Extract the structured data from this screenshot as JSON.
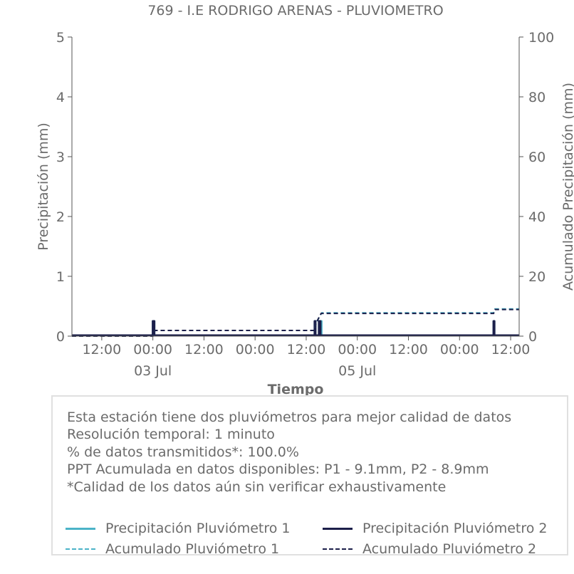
{
  "chart_data": {
    "type": "line",
    "title": "769 - I.E RODRIGO ARENAS - PLUVIOMETRO",
    "xlabel": "Tiempo",
    "ylabel": "Precipitación (mm)",
    "y2label": "Acumulado Precipitación (mm)",
    "ylim": [
      0,
      5
    ],
    "y2lim": [
      0,
      100
    ],
    "yticks": [
      "0",
      "1",
      "2",
      "3",
      "4",
      "5"
    ],
    "y2ticks": [
      "0",
      "20",
      "40",
      "60",
      "80",
      "100"
    ],
    "xlim": [
      "2024-07-02 05:00",
      "2024-07-06 14:00"
    ],
    "xticks": [
      {
        "t": "2024-07-02 12:00",
        "label": "12:00",
        "sub": ""
      },
      {
        "t": "2024-07-03 00:00",
        "label": "00:00",
        "sub": "03 Jul"
      },
      {
        "t": "2024-07-03 12:00",
        "label": "12:00",
        "sub": ""
      },
      {
        "t": "2024-07-04 00:00",
        "label": "00:00",
        "sub": ""
      },
      {
        "t": "2024-07-04 12:00",
        "label": "12:00",
        "sub": ""
      },
      {
        "t": "2024-07-05 00:00",
        "label": "00:00",
        "sub": "05 Jul"
      },
      {
        "t": "2024-07-05 12:00",
        "label": "12:00",
        "sub": ""
      },
      {
        "t": "2024-07-06 00:00",
        "label": "00:00",
        "sub": ""
      },
      {
        "t": "2024-07-06 12:00",
        "label": "12:00",
        "sub": ""
      }
    ],
    "series": [
      {
        "name": "Precipitación Pluviómetro 1",
        "axis": "left",
        "color": "#4bb3c8",
        "style": "solid",
        "spikes": [
          {
            "t": "2024-07-03 00:00",
            "v": 0.25
          },
          {
            "t": "2024-07-03 00:10",
            "v": 0.25
          },
          {
            "t": "2024-07-03 00:20",
            "v": 0.25
          },
          {
            "t": "2024-07-04 14:00",
            "v": 0.25
          },
          {
            "t": "2024-07-04 14:10",
            "v": 0.25
          },
          {
            "t": "2024-07-04 15:00",
            "v": 0.25
          },
          {
            "t": "2024-07-04 15:10",
            "v": 0.25
          },
          {
            "t": "2024-07-04 15:20",
            "v": 0.25
          },
          {
            "t": "2024-07-04 15:35",
            "v": 0.25
          },
          {
            "t": "2024-07-06 08:00",
            "v": 0.25
          },
          {
            "t": "2024-07-06 08:10",
            "v": 0.25
          }
        ]
      },
      {
        "name": "Precipitación Pluviómetro 2",
        "axis": "left",
        "color": "#1c1f4a",
        "style": "solid",
        "spikes": [
          {
            "t": "2024-07-03 00:00",
            "v": 0.25
          },
          {
            "t": "2024-07-03 00:10",
            "v": 0.25
          },
          {
            "t": "2024-07-03 00:20",
            "v": 0.25
          },
          {
            "t": "2024-07-04 14:00",
            "v": 0.25
          },
          {
            "t": "2024-07-04 14:10",
            "v": 0.25
          },
          {
            "t": "2024-07-04 15:00",
            "v": 0.25
          },
          {
            "t": "2024-07-04 15:10",
            "v": 0.25
          },
          {
            "t": "2024-07-04 15:20",
            "v": 0.25
          },
          {
            "t": "2024-07-06 08:00",
            "v": 0.25
          },
          {
            "t": "2024-07-06 08:10",
            "v": 0.25
          }
        ]
      },
      {
        "name": "Acumulado Pluviómetro 1",
        "axis": "right",
        "color": "#4bb3c8",
        "style": "dashed",
        "points": [
          {
            "t": "2024-07-02 05:00",
            "v": 0
          },
          {
            "t": "2024-07-03 00:00",
            "v": 0
          },
          {
            "t": "2024-07-03 00:30",
            "v": 1.9
          },
          {
            "t": "2024-07-04 14:00",
            "v": 1.9
          },
          {
            "t": "2024-07-04 14:20",
            "v": 4.5
          },
          {
            "t": "2024-07-04 15:40",
            "v": 7.8
          },
          {
            "t": "2024-07-06 08:00",
            "v": 7.8
          },
          {
            "t": "2024-07-06 08:20",
            "v": 9.1
          },
          {
            "t": "2024-07-06 14:00",
            "v": 9.1
          }
        ]
      },
      {
        "name": "Acumulado Pluviómetro 2",
        "axis": "right",
        "color": "#1c1f4a",
        "style": "dashed",
        "points": [
          {
            "t": "2024-07-02 05:00",
            "v": 0
          },
          {
            "t": "2024-07-03 00:00",
            "v": 0
          },
          {
            "t": "2024-07-03 00:30",
            "v": 1.9
          },
          {
            "t": "2024-07-04 14:00",
            "v": 1.9
          },
          {
            "t": "2024-07-04 14:20",
            "v": 4.4
          },
          {
            "t": "2024-07-04 15:30",
            "v": 7.6
          },
          {
            "t": "2024-07-06 08:00",
            "v": 7.6
          },
          {
            "t": "2024-07-06 08:20",
            "v": 8.9
          },
          {
            "t": "2024-07-06 14:00",
            "v": 8.9
          }
        ]
      }
    ],
    "grid": false,
    "legend_position": "bottom"
  },
  "info": {
    "line1": "Esta estación tiene dos pluviómetros para mejor calidad de datos",
    "line2": "Resolución temporal: 1 minuto",
    "line3": "% de datos transmitidos*: 100.0%",
    "line4": "PPT Acumulada en datos disponibles: P1 - 9.1mm, P2 - 8.9mm",
    "line5": "*Calidad de los datos aún sin verificar exhaustivamente"
  },
  "legend": {
    "p1": "Precipitación Pluviómetro 1",
    "p2": "Precipitación Pluviómetro 2",
    "a1": "Acumulado Pluviómetro 1",
    "a2": "Acumulado Pluviómetro 2"
  },
  "colors": {
    "p1": "#4bb3c8",
    "p2": "#1c1f4a",
    "text": "#6b6b6b",
    "axis": "#555555"
  }
}
